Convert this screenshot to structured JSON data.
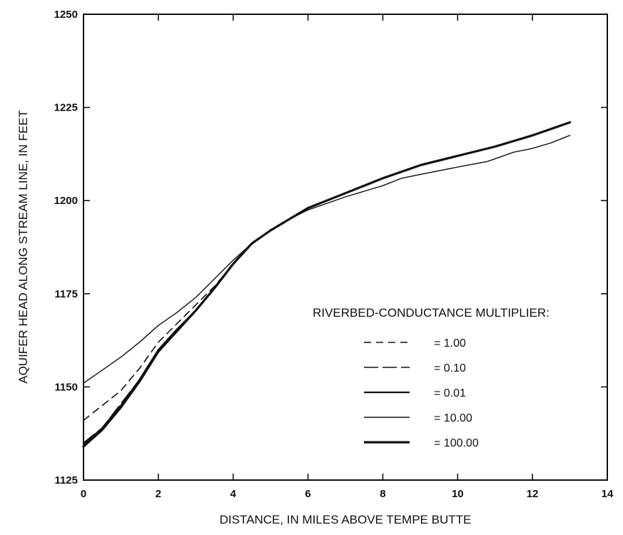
{
  "chart_data": {
    "type": "line",
    "title": "",
    "xlabel": "DISTANCE, IN MILES ABOVE TEMPE BUTTE",
    "ylabel": "AQUIFER HEAD ALONG STREAM LINE, IN FEET",
    "xlim": [
      0,
      14
    ],
    "ylim": [
      1125,
      1250
    ],
    "xticks": [
      0,
      2,
      4,
      6,
      8,
      10,
      12,
      14
    ],
    "yticks": [
      1125,
      1150,
      1175,
      1200,
      1225,
      1250
    ],
    "x_tick_labels": [
      "0",
      "2",
      "4",
      "6",
      "8",
      "10",
      "12",
      "14"
    ],
    "y_tick_labels": [
      "1125",
      "1150",
      "1175",
      "1200",
      "1225",
      "1250"
    ],
    "grid": false,
    "legend": {
      "title": "RIVERBED-CONDUCTANCE MULTIPLIER:",
      "placement": "lower-right",
      "entries": [
        "= 1.00",
        "= 0.10",
        "= 0.01",
        "= 10.00",
        "= 100.00"
      ]
    },
    "series": [
      {
        "name": "= 1.00",
        "style": "dashed",
        "width": 1.6,
        "x": [
          0,
          0.5,
          1,
          1.5,
          2,
          2.5,
          3,
          3.5,
          4,
          4.5,
          5,
          5.5,
          6,
          7,
          8,
          9,
          10,
          11,
          12,
          13
        ],
        "y": [
          1141,
          1145,
          1149,
          1155,
          1162,
          1167,
          1172,
          1177,
          1183,
          1188.5,
          1192,
          1195,
          1198,
          1202,
          1206,
          1209.5,
          1212,
          1214.5,
          1217.5,
          1221
        ]
      },
      {
        "name": "= 0.10",
        "style": "longdash",
        "width": 1.6,
        "x": [
          0,
          0.5,
          1,
          1.5,
          2,
          2.5,
          3,
          3.5,
          4,
          4.5,
          5,
          5.5,
          6,
          7,
          8,
          9,
          10,
          11,
          12,
          13
        ],
        "y": [
          1135,
          1139,
          1145.5,
          1152,
          1159.5,
          1165,
          1170.5,
          1176.5,
          1183,
          1188.5,
          1192,
          1195,
          1198,
          1202,
          1206,
          1209.5,
          1212,
          1214.5,
          1217.5,
          1221
        ]
      },
      {
        "name": "= 0.01",
        "style": "solid",
        "width": 2.2,
        "x": [
          0,
          0.5,
          1,
          1.5,
          2,
          2.5,
          3,
          3.5,
          4,
          4.5,
          5,
          5.5,
          6,
          7,
          8,
          9,
          10,
          11,
          12,
          13
        ],
        "y": [
          1134.5,
          1139,
          1145,
          1152,
          1160,
          1165.5,
          1170.5,
          1176.5,
          1183,
          1188.5,
          1192,
          1195,
          1198,
          1202,
          1206,
          1209.5,
          1212,
          1214.5,
          1217.5,
          1221
        ]
      },
      {
        "name": "= 10.00",
        "style": "solid",
        "width": 1.4,
        "x": [
          0,
          0.5,
          1,
          1.5,
          2,
          2.5,
          3,
          3.5,
          4,
          4.5,
          5,
          5.5,
          6,
          7,
          8,
          8.5,
          9,
          10,
          10.8,
          11.5,
          12,
          12.5,
          13
        ],
        "y": [
          1151,
          1154.5,
          1158,
          1162,
          1166.5,
          1170,
          1174,
          1179,
          1184,
          1188.5,
          1192,
          1195,
          1197.5,
          1201,
          1204,
          1206,
          1207,
          1209,
          1210.5,
          1213,
          1214,
          1215.5,
          1217.5
        ]
      },
      {
        "name": "= 100.00",
        "style": "solid",
        "width": 3.2,
        "x": [
          0,
          0.5,
          1,
          1.5,
          2,
          2.5,
          3,
          3.5,
          4,
          4.5,
          5,
          5.5,
          6,
          7,
          8,
          9,
          10,
          11,
          12,
          13
        ],
        "y": [
          1134,
          1138.5,
          1144.5,
          1151.5,
          1159.5,
          1165,
          1170.5,
          1176.5,
          1183,
          1188.5,
          1192,
          1195,
          1198,
          1202,
          1206,
          1209.5,
          1212,
          1214.5,
          1217.5,
          1221
        ]
      }
    ]
  }
}
